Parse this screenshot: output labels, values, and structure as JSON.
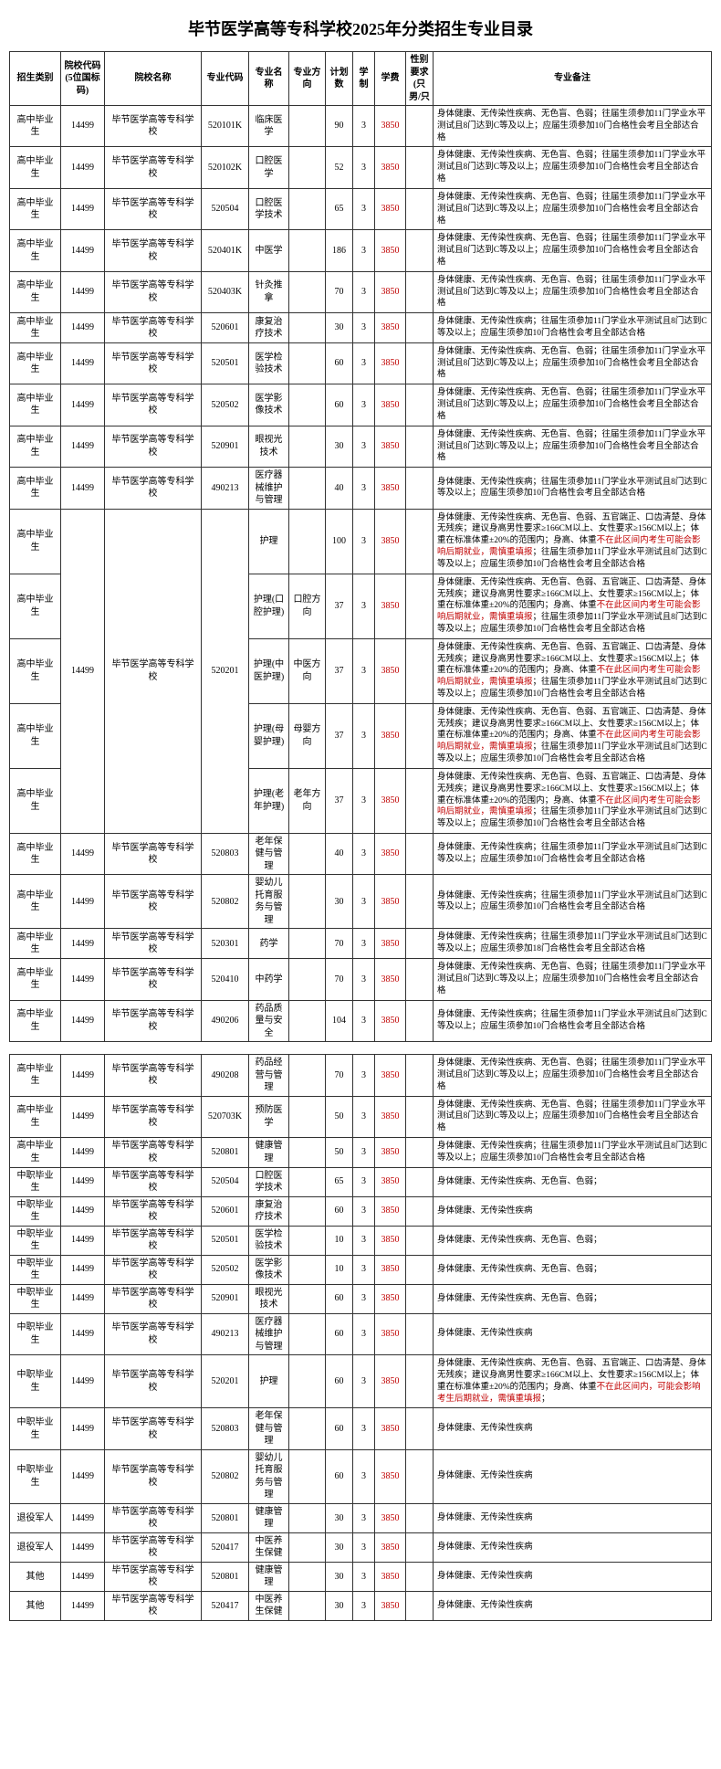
{
  "title": "毕节医学高等专科学校2025年分类招生专业目录",
  "headers": {
    "category": "招生类别",
    "schoolCode": "院校代码(5位国标码)",
    "schoolName": "院校名称",
    "majorCode": "专业代码",
    "majorName": "专业名称",
    "direction": "专业方向",
    "plan": "计划数",
    "years": "学制",
    "fee": "学费",
    "sex": "性别要求(只男/只",
    "remark": "专业备注"
  },
  "school": {
    "code": "14499",
    "name": "毕节医学高等专科学校"
  },
  "typeA": "身体健康、无传染性疾病、无色盲、色弱；往届生须参加11门学业水平测试且8门达到C等及以上；应届生须参加10门合格性会考且全部达合格",
  "typeB": "身体健康、无传染性疾病；往届生须参加11门学业水平测试且8门达到C等及以上；应届生须参加10门合格性会考且全部达合格",
  "typeC_pre": "身体健康、无传染性疾病、无色盲、色弱、五官端正、口齿清楚、身体无残疾；建议身高男性要求≥166CM以上、女性要求≥156CM以上；体重在标准体重±20%的范围内；身高、体重",
  "typeC_red": "不在此区间内考生可能会影响后期就业，需慎重填报",
  "typeC_post": "；往届生须参加11门学业水平测试且8门达到C等及以上；应届生须参加10门合格性会考且全部达合格",
  "typeD": "身体健康、无传染性疾病、无色盲、色弱；",
  "typeE": "身体健康、无传染性疾病",
  "typeF_pre": "身体健康、无传染性疾病、无色盲、色弱、五官端正、口齿清楚、身体无残疾；建议身高男性要求≥166CM以上、女性要求≥156CM以上；体重在标准体重±20%的范围内；身高、体重",
  "typeF_red": "不在此区间内，可能会影响考生后期就业，需慎重填报",
  "typeF_post": "；",
  "typeG": "身体健康、无传染性疾病；往届生须参加11门学业水平测试且8门达到C等及以上；应届生须参加18门合格性会考且全部达合格",
  "cat_gz": "高中毕业生",
  "cat_zz": "中职毕业生",
  "cat_tyjr": "退役军人",
  "cat_qt": "其他",
  "rows": [
    {
      "cat": "gz",
      "mc": "520101K",
      "mn": "临床医学",
      "dir": "",
      "plan": "90",
      "yrs": "3",
      "fee": "3850",
      "rk": "A"
    },
    {
      "cat": "gz",
      "mc": "520102K",
      "mn": "口腔医学",
      "dir": "",
      "plan": "52",
      "yrs": "3",
      "fee": "3850",
      "rk": "A"
    },
    {
      "cat": "gz",
      "mc": "520504",
      "mn": "口腔医学技术",
      "dir": "",
      "plan": "65",
      "yrs": "3",
      "fee": "3850",
      "rk": "A"
    },
    {
      "cat": "gz",
      "mc": "520401K",
      "mn": "中医学",
      "dir": "",
      "plan": "186",
      "yrs": "3",
      "fee": "3850",
      "rk": "A"
    },
    {
      "cat": "gz",
      "mc": "520403K",
      "mn": "针灸推拿",
      "dir": "",
      "plan": "70",
      "yrs": "3",
      "fee": "3850",
      "rk": "A"
    },
    {
      "cat": "gz",
      "mc": "520601",
      "mn": "康复治疗技术",
      "dir": "",
      "plan": "30",
      "yrs": "3",
      "fee": "3850",
      "rk": "B"
    },
    {
      "cat": "gz",
      "mc": "520501",
      "mn": "医学检验技术",
      "dir": "",
      "plan": "60",
      "yrs": "3",
      "fee": "3850",
      "rk": "A"
    },
    {
      "cat": "gz",
      "mc": "520502",
      "mn": "医学影像技术",
      "dir": "",
      "plan": "60",
      "yrs": "3",
      "fee": "3850",
      "rk": "A"
    },
    {
      "cat": "gz",
      "mc": "520901",
      "mn": "眼视光技术",
      "dir": "",
      "plan": "30",
      "yrs": "3",
      "fee": "3850",
      "rk": "A"
    },
    {
      "cat": "gz",
      "mc": "490213",
      "mn": "医疗器械维护与管理",
      "dir": "",
      "plan": "40",
      "yrs": "3",
      "fee": "3850",
      "rk": "B"
    },
    {
      "cat": "gz",
      "mc": "520201",
      "mn": "护理",
      "dir": "",
      "plan": "100",
      "yrs": "3",
      "fee": "3850",
      "rk": "C",
      "merge": "nurse"
    },
    {
      "cat": "gz",
      "mc": "520201",
      "mn": "护理(口腔护理)",
      "dir": "口腔方向",
      "plan": "37",
      "yrs": "3",
      "fee": "3850",
      "rk": "C",
      "merge": "nurse"
    },
    {
      "cat": "gz",
      "mc": "520201",
      "mn": "护理(中医护理)",
      "dir": "中医方向",
      "plan": "37",
      "yrs": "3",
      "fee": "3850",
      "rk": "C",
      "merge": "nurse"
    },
    {
      "cat": "gz",
      "mc": "520201",
      "mn": "护理(母婴护理)",
      "dir": "母婴方向",
      "plan": "37",
      "yrs": "3",
      "fee": "3850",
      "rk": "C",
      "merge": "nurse"
    },
    {
      "cat": "gz",
      "mc": "520201",
      "mn": "护理(老年护理)",
      "dir": "老年方向",
      "plan": "37",
      "yrs": "3",
      "fee": "3850",
      "rk": "C",
      "merge": "nurse"
    },
    {
      "cat": "gz",
      "mc": "520803",
      "mn": "老年保健与管理",
      "dir": "",
      "plan": "40",
      "yrs": "3",
      "fee": "3850",
      "rk": "B"
    },
    {
      "cat": "gz",
      "mc": "520802",
      "mn": "婴幼儿托育服务与管理",
      "dir": "",
      "plan": "30",
      "yrs": "3",
      "fee": "3850",
      "rk": "B"
    },
    {
      "cat": "gz",
      "mc": "520301",
      "mn": "药学",
      "dir": "",
      "plan": "70",
      "yrs": "3",
      "fee": "3850",
      "rk": "G"
    },
    {
      "cat": "gz",
      "mc": "520410",
      "mn": "中药学",
      "dir": "",
      "plan": "70",
      "yrs": "3",
      "fee": "3850",
      "rk": "A"
    },
    {
      "cat": "gz",
      "mc": "490206",
      "mn": "药品质量与安全",
      "dir": "",
      "plan": "104",
      "yrs": "3",
      "fee": "3850",
      "rk": "B"
    },
    {
      "gap": true
    },
    {
      "cat": "gz",
      "mc": "490208",
      "mn": "药品经营与管理",
      "dir": "",
      "plan": "70",
      "yrs": "3",
      "fee": "3850",
      "rk": "A"
    },
    {
      "cat": "gz",
      "mc": "520703K",
      "mn": "预防医学",
      "dir": "",
      "plan": "50",
      "yrs": "3",
      "fee": "3850",
      "rk": "A"
    },
    {
      "cat": "gz",
      "mc": "520801",
      "mn": "健康管理",
      "dir": "",
      "plan": "50",
      "yrs": "3",
      "fee": "3850",
      "rk": "B"
    },
    {
      "cat": "zz",
      "mc": "520504",
      "mn": "口腔医学技术",
      "dir": "",
      "plan": "65",
      "yrs": "3",
      "fee": "3850",
      "rk": "D"
    },
    {
      "cat": "zz",
      "mc": "520601",
      "mn": "康复治疗技术",
      "dir": "",
      "plan": "60",
      "yrs": "3",
      "fee": "3850",
      "rk": "E"
    },
    {
      "cat": "zz",
      "mc": "520501",
      "mn": "医学检验技术",
      "dir": "",
      "plan": "10",
      "yrs": "3",
      "fee": "3850",
      "rk": "D"
    },
    {
      "cat": "zz",
      "mc": "520502",
      "mn": "医学影像技术",
      "dir": "",
      "plan": "10",
      "yrs": "3",
      "fee": "3850",
      "rk": "D"
    },
    {
      "cat": "zz",
      "mc": "520901",
      "mn": "眼视光技术",
      "dir": "",
      "plan": "60",
      "yrs": "3",
      "fee": "3850",
      "rk": "D"
    },
    {
      "cat": "zz",
      "mc": "490213",
      "mn": "医疗器械维护与管理",
      "dir": "",
      "plan": "60",
      "yrs": "3",
      "fee": "3850",
      "rk": "E"
    },
    {
      "cat": "zz",
      "mc": "520201",
      "mn": "护理",
      "dir": "",
      "plan": "60",
      "yrs": "3",
      "fee": "3850",
      "rk": "F"
    },
    {
      "cat": "zz",
      "mc": "520803",
      "mn": "老年保健与管理",
      "dir": "",
      "plan": "60",
      "yrs": "3",
      "fee": "3850",
      "rk": "E"
    },
    {
      "cat": "zz",
      "mc": "520802",
      "mn": "婴幼儿托育服务与管理",
      "dir": "",
      "plan": "60",
      "yrs": "3",
      "fee": "3850",
      "rk": "E"
    },
    {
      "cat": "tyjr",
      "mc": "520801",
      "mn": "健康管理",
      "dir": "",
      "plan": "30",
      "yrs": "3",
      "fee": "3850",
      "rk": "E"
    },
    {
      "cat": "tyjr",
      "mc": "520417",
      "mn": "中医养生保健",
      "dir": "",
      "plan": "30",
      "yrs": "3",
      "fee": "3850",
      "rk": "E"
    },
    {
      "cat": "qt",
      "mc": "520801",
      "mn": "健康管理",
      "dir": "",
      "plan": "30",
      "yrs": "3",
      "fee": "3850",
      "rk": "E"
    },
    {
      "cat": "qt",
      "mc": "520417",
      "mn": "中医养生保健",
      "dir": "",
      "plan": "30",
      "yrs": "3",
      "fee": "3850",
      "rk": "E"
    }
  ]
}
